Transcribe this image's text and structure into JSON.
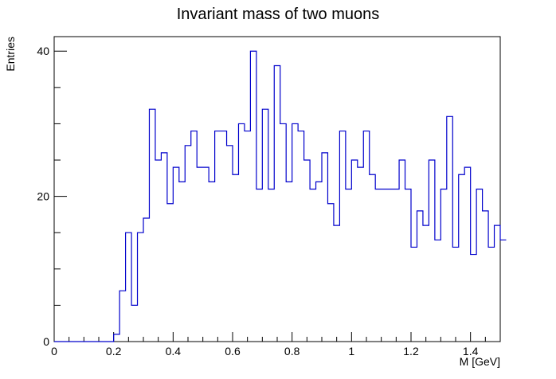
{
  "chart_data": {
    "type": "histogram",
    "title": "Invariant mass of two muons",
    "xlabel": "M [GeV]",
    "ylabel": "Entries",
    "xlim": [
      0,
      1.5
    ],
    "ylim": [
      0,
      42
    ],
    "bin_width": 0.02,
    "x_ticks": [
      0,
      0.2,
      0.4,
      0.6,
      0.8,
      1,
      1.2,
      1.4
    ],
    "x_tick_labels": [
      "0",
      "0.2",
      "0.4",
      "0.6",
      "0.8",
      "1",
      "1.2",
      "1.4"
    ],
    "y_ticks": [
      0,
      20,
      40
    ],
    "y_tick_labels": [
      "0",
      "20",
      "40"
    ],
    "grid": false,
    "line_color": "#0000cc",
    "values": [
      0,
      0,
      0,
      0,
      0,
      0,
      0,
      0,
      0,
      0,
      1,
      7,
      15,
      5,
      15,
      17,
      32,
      25,
      26,
      19,
      24,
      22,
      27,
      29,
      24,
      24,
      22,
      29,
      29,
      27,
      23,
      30,
      29,
      40,
      21,
      32,
      21,
      38,
      30,
      22,
      30,
      29,
      25,
      21,
      22,
      26,
      19,
      16,
      29,
      21,
      25,
      24,
      29,
      23,
      21,
      21,
      21,
      21,
      25,
      21,
      13,
      18,
      16,
      25,
      14,
      21,
      31,
      13,
      23,
      24,
      12,
      21,
      18,
      13,
      16,
      14
    ]
  }
}
